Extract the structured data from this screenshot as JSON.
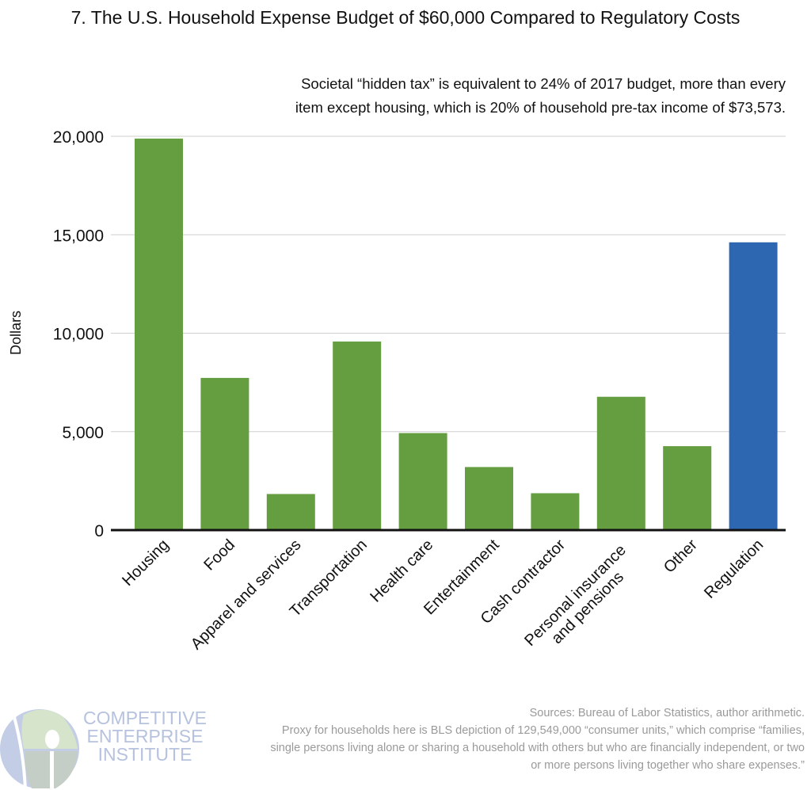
{
  "chart_data": {
    "type": "bar",
    "title": "7. The U.S. Household Expense Budget of $60,000 Compared to Regulatory Costs",
    "subtitle": [
      "Societal “hidden tax” is equivalent to 24% of 2017 budget, more than every",
      "item except housing, which is 20% of household pre-tax income of $73,573."
    ],
    "xlabel": "",
    "ylabel": "Dollars",
    "ylim": [
      0,
      20000
    ],
    "yticks": [
      0,
      5000,
      10000,
      15000,
      20000
    ],
    "ytick_labels": [
      "0",
      "5,000",
      "10,000",
      "15,000",
      "20,000"
    ],
    "grid": true,
    "categories": [
      [
        "Housing"
      ],
      [
        "Food"
      ],
      [
        "Apparel and services"
      ],
      [
        "Transportation"
      ],
      [
        "Health care"
      ],
      [
        "Entertainment"
      ],
      [
        "Cash contractor"
      ],
      [
        "Personal insurance",
        "and pensions"
      ],
      [
        "Other"
      ],
      [
        "Regulation"
      ]
    ],
    "values": [
      19884,
      7729,
      1833,
      9576,
      4928,
      3203,
      1873,
      6771,
      4263,
      14615
    ],
    "colors": [
      "#659d41",
      "#659d41",
      "#659d41",
      "#659d41",
      "#659d41",
      "#659d41",
      "#659d41",
      "#659d41",
      "#659d41",
      "#2d67b1"
    ]
  },
  "footer": {
    "sources": [
      "Sources: Bureau of Labor Statistics, author arithmetic.",
      "Proxy for households here is BLS depiction of 129,549,000 “consumer units,” which comprise “families,",
      "single persons living alone or sharing a household with others but who are financially independent, or two",
      "or more persons living together who share expenses.”"
    ]
  },
  "logo": {
    "lines": [
      "COMPETITIVE",
      "ENTERPRISE",
      "INSTITUTE"
    ]
  }
}
